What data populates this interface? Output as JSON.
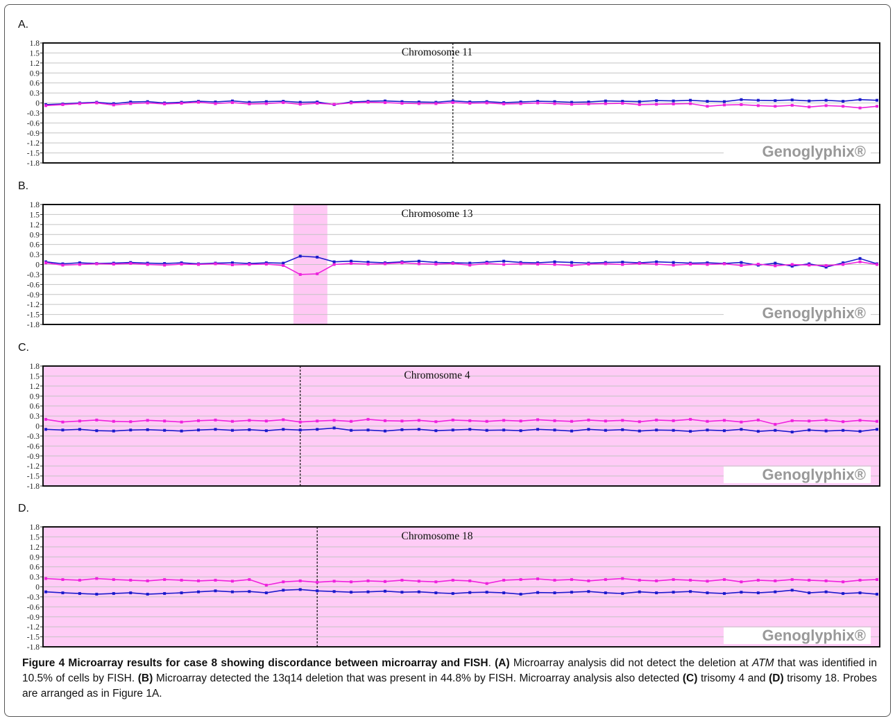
{
  "chart_data": [
    {
      "type": "line",
      "label": "A.",
      "title": "Chromosome 11",
      "watermark": "Genoglyphix®",
      "background": "#ffffff",
      "centromere": 24,
      "ylim": [
        -1.8,
        1.8
      ],
      "yticks": [
        1.8,
        1.5,
        1.2,
        0.9,
        0.6,
        0.3,
        0,
        -0.3,
        -0.6,
        -0.9,
        -1.2,
        -1.5,
        -1.8
      ],
      "grid": true,
      "series": [
        {
          "color": "#1a1acc",
          "values": [
            -0.05,
            -0.03,
            0,
            0.02,
            -0.02,
            0.03,
            0.04,
            0,
            0.02,
            0.05,
            0.03,
            0.06,
            0.02,
            0.04,
            0.05,
            0.02,
            0.03,
            -0.05,
            0.03,
            0.05,
            0.06,
            0.04,
            0.03,
            0.02,
            0.06,
            0.03,
            0.04,
            0.01,
            0.03,
            0.05,
            0.04,
            0.02,
            0.03,
            0.06,
            0.05,
            0.04,
            0.07,
            0.06,
            0.08,
            0.05,
            0.04,
            0.1,
            0.08,
            0.07,
            0.09,
            0.06,
            0.08,
            0.05,
            0.1,
            0.08
          ]
        },
        {
          "color": "#ee22dd",
          "values": [
            -0.08,
            -0.05,
            -0.02,
            0,
            -0.06,
            -0.02,
            0,
            -0.03,
            -0.01,
            0.02,
            -0.02,
            0.01,
            -0.03,
            -0.02,
            0.01,
            -0.04,
            -0.01,
            -0.04,
            0,
            0.02,
            0.01,
            -0.01,
            -0.02,
            -0.02,
            0.01,
            -0.01,
            0,
            -0.03,
            -0.02,
            0,
            -0.02,
            -0.04,
            -0.03,
            -0.02,
            -0.01,
            -0.05,
            -0.04,
            -0.03,
            -0.02,
            -0.1,
            -0.06,
            -0.05,
            -0.08,
            -0.1,
            -0.07,
            -0.12,
            -0.08,
            -0.1,
            -0.15,
            -0.1
          ]
        }
      ]
    },
    {
      "type": "line",
      "label": "B.",
      "title": "Chromosome 13",
      "watermark": "Genoglyphix®",
      "background": "#ffffff",
      "highlight": [
        14.6,
        16.6
      ],
      "highlight_color": "#ffc8f4",
      "ylim": [
        -1.8,
        1.8
      ],
      "yticks": [
        1.8,
        1.5,
        1.2,
        0.9,
        0.6,
        0.3,
        0,
        -0.3,
        -0.6,
        -0.9,
        -1.2,
        -1.5,
        -1.8
      ],
      "grid": true,
      "series": [
        {
          "color": "#1a1acc",
          "values": [
            0.08,
            0.02,
            0.05,
            0.03,
            0.04,
            0.06,
            0.04,
            0.03,
            0.05,
            0.02,
            0.04,
            0.05,
            0.03,
            0.05,
            0.04,
            0.25,
            0.22,
            0.08,
            0.1,
            0.07,
            0.05,
            0.08,
            0.1,
            0.06,
            0.05,
            0.04,
            0.07,
            0.1,
            0.06,
            0.05,
            0.08,
            0.06,
            0.04,
            0.06,
            0.07,
            0.05,
            0.08,
            0.06,
            0.04,
            0.05,
            0.03,
            0.06,
            -0.02,
            0.04,
            -0.05,
            0.02,
            -0.08,
            0.05,
            0.18,
            0.02
          ]
        },
        {
          "color": "#ee22dd",
          "values": [
            0.05,
            -0.02,
            0,
            0.02,
            0.01,
            0.03,
            0,
            -0.02,
            0.01,
            0,
            0.02,
            -0.01,
            0,
            0.01,
            -0.03,
            -0.3,
            -0.28,
            0,
            0.03,
            0.01,
            0.02,
            0.05,
            0.02,
            0.01,
            0.03,
            -0.02,
            0.03,
            0,
            0.02,
            0.01,
            0,
            -0.03,
            0.01,
            0.02,
            0,
            0.03,
            0.01,
            -0.02,
            0.01,
            0,
            0.02,
            -0.03,
            0.01,
            -0.04,
            0,
            -0.02,
            -0.03,
            0,
            0.08,
            0
          ]
        }
      ]
    },
    {
      "type": "line",
      "label": "C.",
      "title": "Chromosome 4",
      "watermark": "Genoglyphix®",
      "background": "#ffccf6",
      "centromere": 15,
      "ylim": [
        -1.8,
        1.8
      ],
      "yticks": [
        1.8,
        1.5,
        1.2,
        0.9,
        0.6,
        0.3,
        0,
        -0.3,
        -0.6,
        -0.9,
        -1.2,
        -1.5,
        -1.8
      ],
      "grid": true,
      "series": [
        {
          "color": "#ee22dd",
          "values": [
            0.2,
            0.12,
            0.15,
            0.18,
            0.14,
            0.13,
            0.17,
            0.15,
            0.12,
            0.16,
            0.18,
            0.14,
            0.17,
            0.15,
            0.19,
            0.12,
            0.15,
            0.17,
            0.14,
            0.2,
            0.16,
            0.15,
            0.17,
            0.13,
            0.18,
            0.16,
            0.14,
            0.17,
            0.15,
            0.19,
            0.16,
            0.14,
            0.18,
            0.15,
            0.17,
            0.13,
            0.18,
            0.16,
            0.2,
            0.14,
            0.17,
            0.12,
            0.18,
            0.05,
            0.16,
            0.15,
            0.18,
            0.13,
            0.17,
            0.14
          ]
        },
        {
          "color": "#1a1acc",
          "values": [
            -0.1,
            -0.12,
            -0.1,
            -0.14,
            -0.15,
            -0.12,
            -0.11,
            -0.13,
            -0.15,
            -0.12,
            -0.1,
            -0.13,
            -0.11,
            -0.14,
            -0.1,
            -0.12,
            -0.1,
            -0.06,
            -0.13,
            -0.12,
            -0.15,
            -0.11,
            -0.1,
            -0.14,
            -0.12,
            -0.1,
            -0.13,
            -0.12,
            -0.14,
            -0.1,
            -0.12,
            -0.15,
            -0.1,
            -0.13,
            -0.11,
            -0.15,
            -0.12,
            -0.13,
            -0.16,
            -0.12,
            -0.14,
            -0.1,
            -0.16,
            -0.13,
            -0.18,
            -0.12,
            -0.15,
            -0.13,
            -0.16,
            -0.1
          ]
        }
      ]
    },
    {
      "type": "line",
      "label": "D.",
      "title": "Chromosome 18",
      "watermark": "Genoglyphix®",
      "background": "#ffccf6",
      "centromere": 16,
      "ylim": [
        -1.8,
        1.8
      ],
      "yticks": [
        1.8,
        1.5,
        1.2,
        0.9,
        0.6,
        0.3,
        0,
        -0.3,
        -0.6,
        -0.9,
        -1.2,
        -1.5,
        -1.8
      ],
      "grid": true,
      "series": [
        {
          "color": "#ee22dd",
          "values": [
            0.25,
            0.22,
            0.2,
            0.25,
            0.22,
            0.2,
            0.18,
            0.22,
            0.2,
            0.18,
            0.2,
            0.17,
            0.22,
            0.05,
            0.15,
            0.18,
            0.14,
            0.17,
            0.15,
            0.18,
            0.16,
            0.2,
            0.17,
            0.15,
            0.2,
            0.18,
            0.1,
            0.2,
            0.22,
            0.24,
            0.2,
            0.22,
            0.18,
            0.22,
            0.25,
            0.2,
            0.18,
            0.22,
            0.2,
            0.17,
            0.22,
            0.15,
            0.2,
            0.18,
            0.22,
            0.2,
            0.18,
            0.15,
            0.2,
            0.22
          ]
        },
        {
          "color": "#1a1acc",
          "values": [
            -0.15,
            -0.18,
            -0.2,
            -0.22,
            -0.2,
            -0.18,
            -0.22,
            -0.2,
            -0.18,
            -0.15,
            -0.12,
            -0.15,
            -0.14,
            -0.18,
            -0.1,
            -0.08,
            -0.12,
            -0.14,
            -0.16,
            -0.15,
            -0.13,
            -0.16,
            -0.15,
            -0.18,
            -0.2,
            -0.17,
            -0.16,
            -0.18,
            -0.22,
            -0.17,
            -0.18,
            -0.16,
            -0.14,
            -0.18,
            -0.2,
            -0.15,
            -0.18,
            -0.16,
            -0.14,
            -0.18,
            -0.2,
            -0.16,
            -0.18,
            -0.15,
            -0.1,
            -0.18,
            -0.15,
            -0.2,
            -0.18,
            -0.22
          ]
        }
      ]
    }
  ],
  "caption": {
    "title": "Figure 4 Microarray results for case 8 showing discordance between microarray and FISH",
    "runs": [
      ". ",
      "(A)",
      " Microarray analysis did not detect the deletion at ",
      "ATM",
      " that was identified in 10.5% of cells by FISH. ",
      "(B)",
      " Microarray detected the 13q14 deletion that was present in 44.8% by FISH. Microarray analysis also detected ",
      "(C)",
      " trisomy 4 and ",
      "(D)",
      " trisomy 18. Probes are arranged as in Figure 1A."
    ]
  }
}
